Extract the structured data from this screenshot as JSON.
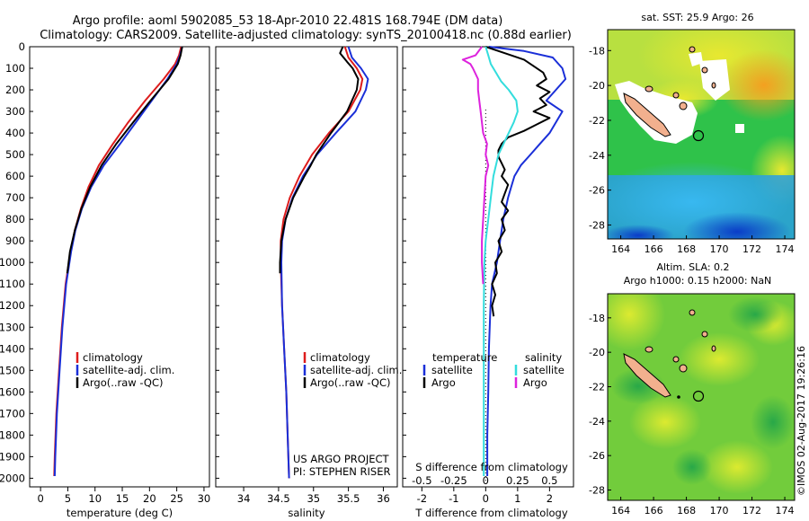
{
  "header": {
    "line1": "Argo profile: aoml 5902085_53 18-Apr-2010 22.481S 168.794E (DM data)",
    "line2": "Climatology: CARS2009. Satellite-adjusted climatology: synTS_20100418.nc (0.88d earlier)"
  },
  "colors": {
    "climatology": "#dd1c1c",
    "satellite": "#1a2fd8",
    "argo": "#000000",
    "salinity_diff": "#33dddd",
    "salinity_argo": "#dd22dd"
  },
  "depth_axis": {
    "min": 0,
    "max": 2000,
    "step": 100,
    "ticks": [
      "0",
      "100",
      "200",
      "300",
      "400",
      "500",
      "600",
      "700",
      "800",
      "900",
      "1000",
      "1100",
      "1200",
      "1300",
      "1400",
      "1500",
      "1600",
      "1700",
      "1800",
      "1900",
      "2000"
    ]
  },
  "chart_data": [
    {
      "type": "line",
      "panel": "temperature",
      "xlabel": "temperature (deg C)",
      "ylabel": "depth",
      "xlim": [
        -2,
        31
      ],
      "ylim": [
        2040,
        0
      ],
      "xticks": [
        "0",
        "5",
        "10",
        "15",
        "20",
        "25",
        "30"
      ],
      "legend": [
        "climatology",
        "satellite-adj. clim.",
        "Argo(..raw -QC)"
      ],
      "series": [
        {
          "name": "climatology",
          "color": "#dd1c1c",
          "depth": [
            0,
            40,
            80,
            150,
            250,
            350,
            450,
            550,
            650,
            750,
            850,
            950,
            1100,
            1300,
            1500,
            1700,
            1900,
            1990
          ],
          "values": [
            25.8,
            25.4,
            24.7,
            22.6,
            19.2,
            16.1,
            13.3,
            10.7,
            8.8,
            7.4,
            6.3,
            5.5,
            4.6,
            3.9,
            3.4,
            2.9,
            2.6,
            2.5
          ]
        },
        {
          "name": "satellite-adj. clim.",
          "color": "#1a2fd8",
          "depth": [
            0,
            40,
            80,
            150,
            250,
            350,
            450,
            550,
            650,
            750,
            850,
            950,
            1100,
            1300,
            1500,
            1700,
            1900,
            1990
          ],
          "values": [
            26.0,
            25.6,
            25.0,
            23.3,
            20.4,
            17.5,
            14.6,
            11.6,
            9.3,
            7.6,
            6.4,
            5.6,
            4.7,
            4.0,
            3.5,
            3.0,
            2.7,
            2.6
          ]
        },
        {
          "name": "Argo(..raw -QC)",
          "color": "#000000",
          "depth": [
            0,
            40,
            80,
            150,
            250,
            350,
            450,
            550,
            650,
            750,
            850,
            950,
            1050
          ],
          "values": [
            26.0,
            25.7,
            25.2,
            23.5,
            20.2,
            17.0,
            13.9,
            11.2,
            9.1,
            7.5,
            6.3,
            5.4,
            4.9
          ]
        }
      ]
    },
    {
      "type": "line",
      "panel": "salinity",
      "xlabel": "salinity",
      "ylabel": "depth",
      "xlim": [
        33.6,
        36.2
      ],
      "ylim": [
        2040,
        0
      ],
      "xticks": [
        "34",
        "34.5",
        "35",
        "35.5",
        "36"
      ],
      "legend": [
        "climatology",
        "satellite-adj. clim.",
        "Argo(..raw -QC)"
      ],
      "series": [
        {
          "name": "climatology",
          "color": "#dd1c1c",
          "depth": [
            0,
            50,
            100,
            150,
            200,
            300,
            400,
            500,
            600,
            700,
            800,
            900,
            1000,
            1200,
            1400,
            1600,
            1800,
            2000
          ],
          "values": [
            35.45,
            35.5,
            35.62,
            35.7,
            35.67,
            35.5,
            35.22,
            34.98,
            34.8,
            34.66,
            34.57,
            34.53,
            34.53,
            34.55,
            34.58,
            34.61,
            34.63,
            34.65
          ]
        },
        {
          "name": "satellite-adj. clim.",
          "color": "#1a2fd8",
          "depth": [
            0,
            50,
            100,
            150,
            200,
            300,
            400,
            500,
            600,
            700,
            800,
            900,
            1000,
            1200,
            1400,
            1600,
            1800,
            2000
          ],
          "values": [
            35.5,
            35.55,
            35.68,
            35.78,
            35.75,
            35.6,
            35.32,
            35.05,
            34.85,
            34.7,
            34.6,
            34.55,
            34.54,
            34.55,
            34.58,
            34.61,
            34.63,
            34.65
          ]
        },
        {
          "name": "Argo(..raw -QC)",
          "color": "#000000",
          "depth": [
            0,
            30,
            70,
            100,
            150,
            200,
            300,
            400,
            500,
            550,
            600,
            700,
            800,
            900,
            1000,
            1050
          ],
          "values": [
            35.42,
            35.38,
            35.48,
            35.56,
            35.64,
            35.62,
            35.48,
            35.25,
            35.04,
            34.96,
            34.87,
            34.71,
            34.6,
            34.54,
            34.52,
            34.52
          ]
        }
      ],
      "annotations": [
        "US ARGO PROJECT",
        "PI: STEPHEN RISER"
      ]
    },
    {
      "type": "line",
      "panel": "differences",
      "xlabel_top": "S difference from climatology",
      "xlabel": "T difference from climatology",
      "xlim": [
        -2.6,
        2.75
      ],
      "ylim": [
        2040,
        0
      ],
      "xticks": [
        "-2",
        "-1",
        "0",
        "1",
        "2"
      ],
      "xticks_top": [
        "-0.5",
        "-0.25",
        "0",
        "0.25",
        "0.5"
      ],
      "legend": [
        "temperature",
        "satellite",
        "Argo",
        "salinity",
        "satellite",
        "Argo"
      ],
      "series": [
        {
          "name": "temperature satellite",
          "color": "#1a2fd8",
          "depth": [
            0,
            20,
            50,
            100,
            150,
            200,
            250,
            300,
            350,
            400,
            450,
            500,
            550,
            600,
            650,
            700,
            800,
            900,
            1000,
            1100,
            1200,
            1400,
            1600,
            1800,
            1990
          ],
          "values": [
            0.1,
            1.2,
            2.1,
            2.4,
            2.5,
            2.2,
            1.9,
            2.4,
            2.2,
            2.0,
            1.7,
            1.4,
            1.1,
            0.9,
            0.8,
            0.7,
            0.55,
            0.45,
            0.35,
            0.2,
            0.15,
            0.1,
            0.08,
            0.05,
            0.05
          ]
        },
        {
          "name": "temperature Argo",
          "color": "#000000",
          "depth": [
            0,
            30,
            60,
            90,
            120,
            150,
            180,
            210,
            240,
            270,
            300,
            330,
            360,
            390,
            420,
            450,
            480,
            510,
            540,
            570,
            600,
            640,
            680,
            720,
            760,
            800,
            850,
            900,
            950,
            1000,
            1050,
            1100,
            1150,
            1200,
            1250
          ],
          "values": [
            0.0,
            0.6,
            1.2,
            1.5,
            1.8,
            1.9,
            1.6,
            2.0,
            1.7,
            1.9,
            1.5,
            2.0,
            1.6,
            1.2,
            0.7,
            0.5,
            0.4,
            0.4,
            0.5,
            0.6,
            0.5,
            0.7,
            0.6,
            0.5,
            0.7,
            0.5,
            0.6,
            0.4,
            0.5,
            0.3,
            0.35,
            0.2,
            0.3,
            0.2,
            0.25
          ]
        },
        {
          "name": "salinity satellite",
          "color": "#33dddd",
          "depth": [
            0,
            40,
            80,
            120,
            160,
            200,
            250,
            300,
            350,
            400,
            450,
            500,
            600,
            700,
            800,
            900,
            1000,
            1200,
            1400,
            1600,
            1800,
            1990
          ],
          "values": [
            0.0,
            0.02,
            0.04,
            0.08,
            0.12,
            0.18,
            0.24,
            0.25,
            0.22,
            0.18,
            0.14,
            0.1,
            0.06,
            0.04,
            0.02,
            0.0,
            -0.01,
            -0.015,
            -0.015,
            -0.015,
            -0.015,
            -0.015
          ]
        },
        {
          "name": "salinity Argo",
          "color": "#dd22dd",
          "depth": [
            0,
            40,
            60,
            80,
            100,
            150,
            200,
            250,
            300,
            350,
            400,
            450,
            500,
            550,
            600,
            700,
            800,
            900,
            1000,
            1100
          ],
          "values": [
            -0.03,
            -0.08,
            -0.18,
            -0.12,
            -0.1,
            -0.06,
            -0.06,
            -0.05,
            -0.04,
            -0.03,
            -0.02,
            0.01,
            0.0,
            0.02,
            0.0,
            -0.01,
            -0.02,
            -0.03,
            -0.03,
            -0.02
          ]
        }
      ],
      "annotations": [
        "temperature",
        "salinity",
        "satellite",
        "Argo"
      ]
    },
    {
      "type": "heatmap",
      "panel": "map_sst",
      "title": "sat. SST: 25.9 Argo: 26",
      "xlim": [
        163.2,
        174.6
      ],
      "ylim": [
        -28.8,
        -16.8
      ],
      "xticks": [
        "164",
        "166",
        "168",
        "170",
        "172",
        "174"
      ],
      "yticks": [
        "-18",
        "-20",
        "-22",
        "-24",
        "-26",
        "-28"
      ],
      "float_position": {
        "lon": 168.794,
        "lat": -22.481
      }
    },
    {
      "type": "heatmap",
      "panel": "map_sla",
      "title": "Altim. SLA: 0.2",
      "subtitle": "Argo h1000: 0.15 h2000: NaN",
      "xlim": [
        163.2,
        174.6
      ],
      "ylim": [
        -28.6,
        -16.6
      ],
      "xticks": [
        "164",
        "166",
        "168",
        "170",
        "172",
        "174"
      ],
      "yticks": [
        "-18",
        "-20",
        "-22",
        "-24",
        "-26",
        "-28"
      ],
      "float_position": {
        "lon": 168.794,
        "lat": -22.481
      }
    }
  ],
  "footer": {
    "credit": "©IMOS 02-Aug-2017 19:26:16"
  }
}
